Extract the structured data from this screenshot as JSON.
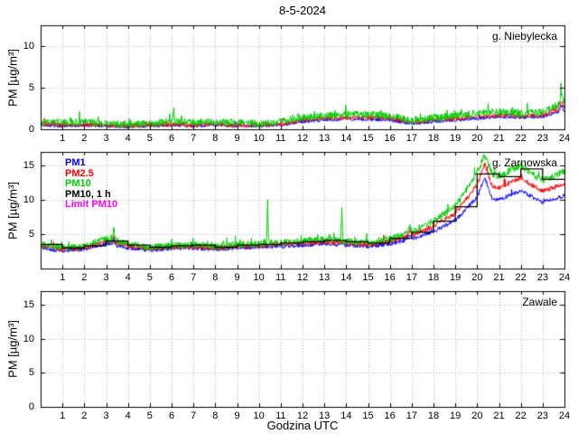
{
  "title": "8-5-2024",
  "xlabel": "Godzina UTC",
  "ylabel": "PM [µg/m³]",
  "legend": {
    "items": [
      {
        "label": "PM1",
        "color": "#0000ff"
      },
      {
        "label": "PM2.5",
        "color": "#ff0000"
      },
      {
        "label": "PM10",
        "color": "#00cc00"
      },
      {
        "label": "PM10, 1 h",
        "color": "#000000"
      },
      {
        "label": "Limit PM10",
        "color": "#ff00ff"
      }
    ]
  },
  "chart_data": [
    {
      "type": "line",
      "station": "g. Niebylecka",
      "xlim": [
        0,
        24
      ],
      "ylim": [
        0,
        12.5
      ],
      "xticks": [
        1,
        2,
        3,
        4,
        5,
        6,
        7,
        8,
        9,
        10,
        11,
        12,
        13,
        14,
        15,
        16,
        17,
        18,
        19,
        20,
        21,
        22,
        23,
        24
      ],
      "yticks": [
        0,
        5,
        10
      ],
      "grid": true,
      "x_anchors": [
        0,
        1,
        2,
        3,
        4,
        5,
        6,
        7,
        8,
        9,
        10,
        11,
        12,
        13,
        14,
        15,
        16,
        17,
        18,
        19,
        20,
        21,
        22,
        23,
        24
      ],
      "series": [
        {
          "name": "PM1",
          "color": "#0000ff",
          "noise": 0.2,
          "values": [
            0.5,
            0.4,
            0.5,
            0.4,
            0.3,
            0.4,
            0.5,
            0.4,
            0.5,
            0.4,
            0.4,
            0.5,
            0.9,
            1.1,
            1.2,
            1.2,
            1.1,
            0.7,
            0.9,
            1.1,
            1.3,
            1.5,
            1.4,
            1.5,
            2.3
          ],
          "spikes": [
            {
              "x": 23.85,
              "v": 2.9,
              "w": 0.12
            }
          ]
        },
        {
          "name": "PM2.5",
          "color": "#ff0000",
          "noise": 0.25,
          "values": [
            0.6,
            0.5,
            0.6,
            0.5,
            0.4,
            0.5,
            0.6,
            0.5,
            0.6,
            0.5,
            0.5,
            0.6,
            1.1,
            1.3,
            1.4,
            1.4,
            1.3,
            0.8,
            1.1,
            1.3,
            1.5,
            1.7,
            1.6,
            1.7,
            2.7
          ],
          "spikes": [
            {
              "x": 23.85,
              "v": 3.4,
              "w": 0.12
            }
          ]
        },
        {
          "name": "PM10",
          "color": "#00cc00",
          "noise": 0.45,
          "values": [
            0.9,
            0.8,
            0.9,
            0.7,
            0.6,
            0.7,
            0.9,
            0.8,
            0.9,
            0.8,
            0.7,
            0.9,
            1.4,
            1.6,
            1.8,
            1.8,
            1.6,
            1.0,
            1.4,
            1.6,
            1.9,
            2.1,
            1.9,
            2.1,
            3.3
          ],
          "spikes": [
            {
              "x": 6.1,
              "v": 2.9,
              "w": 0.05
            },
            {
              "x": 23.85,
              "v": 4.4,
              "w": 0.12
            }
          ]
        }
      ]
    },
    {
      "type": "line",
      "station": "g. Zarnowska",
      "xlim": [
        0,
        24
      ],
      "ylim": [
        0,
        17
      ],
      "xticks": [
        1,
        2,
        3,
        4,
        5,
        6,
        7,
        8,
        9,
        10,
        11,
        12,
        13,
        14,
        15,
        16,
        17,
        18,
        19,
        20,
        21,
        22,
        23,
        24
      ],
      "yticks": [
        5,
        10,
        15
      ],
      "grid": true,
      "x_anchors": [
        0,
        1,
        2,
        3,
        4,
        5,
        6,
        7,
        8,
        9,
        10,
        11,
        12,
        13,
        14,
        15,
        16,
        17,
        18,
        19,
        20,
        21,
        22,
        23,
        24
      ],
      "series": [
        {
          "name": "PM1",
          "color": "#0000ff",
          "noise": 0.3,
          "values": [
            3.0,
            2.6,
            2.8,
            3.6,
            3.0,
            2.7,
            2.9,
            3.0,
            2.8,
            3.0,
            3.1,
            3.2,
            3.4,
            3.6,
            3.4,
            3.2,
            3.6,
            4.3,
            5.4,
            7.0,
            10.4,
            10.0,
            11.4,
            9.6,
            10.6
          ],
          "spikes": [
            {
              "x": 3.35,
              "v": 4.4,
              "w": 0.08
            },
            {
              "x": 16.9,
              "v": 4.9,
              "w": 0.15
            },
            {
              "x": 20.35,
              "v": 13.2,
              "w": 0.35
            }
          ]
        },
        {
          "name": "PM2.5",
          "color": "#ff0000",
          "noise": 0.35,
          "values": [
            3.3,
            2.8,
            3.0,
            4.0,
            3.3,
            2.9,
            3.1,
            3.2,
            3.0,
            3.2,
            3.3,
            3.5,
            3.7,
            3.9,
            3.7,
            3.5,
            4.0,
            4.8,
            6.2,
            8.0,
            12.2,
            11.8,
            13.2,
            11.2,
            12.4
          ],
          "spikes": [
            {
              "x": 3.35,
              "v": 5.0,
              "w": 0.08
            },
            {
              "x": 16.9,
              "v": 5.5,
              "w": 0.15
            },
            {
              "x": 20.35,
              "v": 15.2,
              "w": 0.35
            }
          ]
        },
        {
          "name": "PM10",
          "color": "#00cc00",
          "noise": 0.5,
          "values": [
            3.6,
            3.0,
            3.3,
            4.4,
            3.6,
            3.1,
            3.3,
            3.5,
            3.2,
            3.5,
            3.6,
            3.8,
            4.0,
            4.3,
            4.0,
            3.8,
            4.4,
            5.3,
            7.0,
            9.0,
            14.0,
            13.5,
            15.0,
            12.8,
            14.2
          ],
          "spikes": [
            {
              "x": 3.35,
              "v": 5.8,
              "w": 0.08
            },
            {
              "x": 10.4,
              "v": 10.2,
              "w": 0.05
            },
            {
              "x": 13.8,
              "v": 9.4,
              "w": 0.05
            },
            {
              "x": 16.9,
              "v": 6.2,
              "w": 0.15
            },
            {
              "x": 20.35,
              "v": 16.6,
              "w": 0.35
            }
          ]
        }
      ],
      "step_series": {
        "name": "PM10, 1 h",
        "color": "#000000",
        "hourly": [
          3.5,
          3.0,
          3.3,
          4.0,
          3.4,
          3.1,
          3.3,
          3.4,
          3.1,
          3.4,
          3.5,
          3.7,
          3.9,
          4.1,
          3.9,
          3.7,
          4.4,
          5.3,
          6.9,
          9.0,
          13.8,
          13.4,
          14.5,
          13.0
        ]
      }
    },
    {
      "type": "line",
      "station": "Zawale",
      "xlim": [
        0,
        24
      ],
      "ylim": [
        0,
        17
      ],
      "xticks": [
        1,
        2,
        3,
        4,
        5,
        6,
        7,
        8,
        9,
        10,
        11,
        12,
        13,
        14,
        15,
        16,
        17,
        18,
        19,
        20,
        21,
        22,
        23,
        24
      ],
      "yticks": [
        0,
        5,
        10,
        15
      ],
      "grid": true,
      "x_anchors": [
        0,
        1,
        2,
        3,
        4,
        5,
        6,
        7,
        8,
        9,
        10,
        11,
        12,
        13,
        14,
        15,
        16,
        17,
        18,
        19,
        20,
        21,
        22,
        23,
        24
      ],
      "series": []
    }
  ]
}
